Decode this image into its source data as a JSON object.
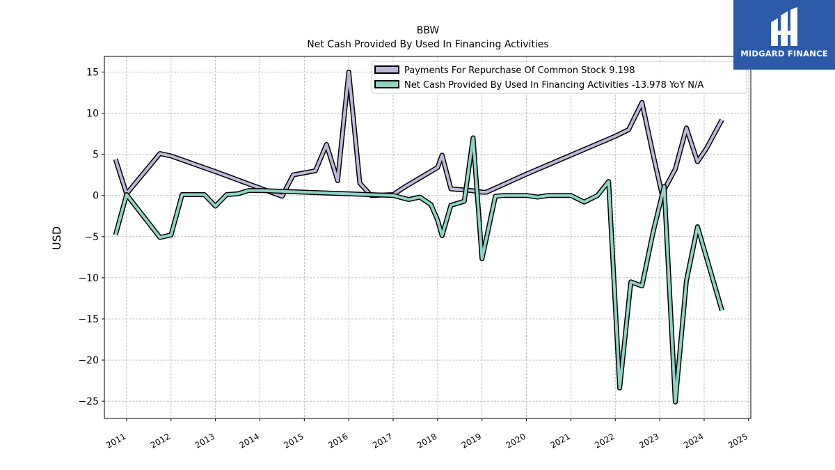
{
  "logo": {
    "text": "MIDGARD FINANCE"
  },
  "chart_data": {
    "type": "line",
    "title": "BBW",
    "subtitle": "Net Cash Provided By Used In Financing Activities",
    "ylabel": "USD",
    "xlabel": "",
    "xlim": [
      2010.5,
      2025.05
    ],
    "ylim": [
      -27.1,
      16.9
    ],
    "yticks": [
      15,
      10,
      5,
      0,
      -5,
      -10,
      -15,
      -20,
      -25
    ],
    "ytick_labels": [
      "15",
      "10",
      "5",
      "0",
      "−5",
      "−10",
      "−15",
      "−20",
      "−25"
    ],
    "xticks": [
      2011,
      2012,
      2013,
      2014,
      2015,
      2016,
      2017,
      2018,
      2019,
      2020,
      2021,
      2022,
      2023,
      2024,
      2025
    ],
    "xtick_labels": [
      "2011",
      "2012",
      "2013",
      "2014",
      "2015",
      "2016",
      "2017",
      "2018",
      "2019",
      "2020",
      "2021",
      "2022",
      "2023",
      "2024",
      "2025"
    ],
    "grid": true,
    "legend_position": "top-right",
    "series": [
      {
        "name": "Payments For Repurchase Of Common Stock",
        "legend_label": "Payments For Repurchase Of Common Stock  9.198",
        "color": "#bcb8d8",
        "x": [
          2010.75,
          2011.0,
          2011.75,
          2012.0,
          2013.0,
          2014.0,
          2014.25,
          2014.5,
          2014.75,
          2015.25,
          2015.5,
          2015.75,
          2016.0,
          2016.25,
          2016.5,
          2017.0,
          2017.25,
          2017.5,
          2017.75,
          2018.0,
          2018.1,
          2018.3,
          2018.75,
          2019.0,
          2019.1,
          2020.0,
          2021.0,
          2022.0,
          2022.3,
          2022.6,
          2022.85,
          2023.05,
          2023.35,
          2023.6,
          2023.85,
          2024.05,
          2024.4
        ],
        "y": [
          4.4,
          0.2,
          5.1,
          4.8,
          2.9,
          0.9,
          0.4,
          -0.1,
          2.5,
          3.0,
          6.2,
          1.8,
          15.0,
          1.5,
          0.0,
          0.1,
          1.0,
          1.8,
          2.6,
          3.4,
          4.9,
          0.8,
          0.6,
          0.4,
          0.4,
          2.6,
          4.9,
          7.2,
          8.0,
          11.3,
          5.0,
          0.2,
          3.2,
          8.2,
          4.1,
          5.7,
          9.198
        ]
      },
      {
        "name": "Net Cash Provided By Used In Financing Activities",
        "legend_label": "Net Cash Provided By Used In Financing Activities  -13.978 YoY N/A",
        "color": "#8fd3c4",
        "x": [
          2010.75,
          2011.0,
          2011.75,
          2012.0,
          2012.25,
          2012.75,
          2013.0,
          2013.25,
          2013.5,
          2013.75,
          2014.0,
          2015.0,
          2016.0,
          2017.0,
          2017.35,
          2017.6,
          2017.85,
          2018.0,
          2018.1,
          2018.3,
          2018.6,
          2018.8,
          2019.0,
          2019.3,
          2019.5,
          2019.75,
          2020.0,
          2020.25,
          2020.5,
          2021.0,
          2021.3,
          2021.6,
          2021.85,
          2022.1,
          2022.35,
          2022.6,
          2022.85,
          2023.1,
          2023.35,
          2023.6,
          2023.85,
          2024.05,
          2024.4
        ],
        "y": [
          -4.8,
          0.1,
          -5.1,
          -4.8,
          0.1,
          0.1,
          -1.3,
          0.1,
          0.2,
          0.6,
          0.6,
          0.4,
          0.2,
          0.0,
          -0.5,
          -0.2,
          -1.1,
          -3.0,
          -4.9,
          -1.2,
          -0.7,
          7.0,
          -7.7,
          -0.1,
          0.0,
          0.0,
          0.0,
          -0.2,
          0.0,
          0.0,
          -0.8,
          0.0,
          1.7,
          -23.4,
          -10.5,
          -11.0,
          -4.5,
          1.1,
          -25.1,
          -10.4,
          -3.8,
          -7.5,
          -13.978
        ]
      }
    ]
  }
}
